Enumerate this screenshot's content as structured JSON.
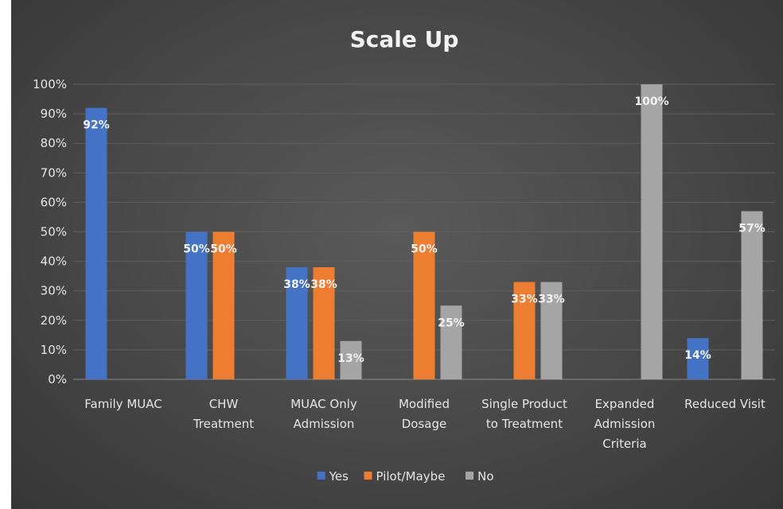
{
  "chart_data": {
    "type": "bar",
    "title": "Scale Up",
    "categories": [
      [
        "Family MUAC"
      ],
      [
        "CHW",
        "Treatment"
      ],
      [
        "MUAC Only",
        "Admission"
      ],
      [
        "Modified",
        "Dosage"
      ],
      [
        "Single Product",
        "to Treatment"
      ],
      [
        "Expanded",
        "Admission",
        "Criteria"
      ],
      [
        "Reduced Visit"
      ]
    ],
    "series": [
      {
        "name": "Yes",
        "color": "#4472c4",
        "values": [
          92,
          50,
          38,
          0,
          0,
          0,
          14
        ],
        "labels": [
          "92%",
          "50%",
          "38%",
          "",
          "",
          "",
          "14%"
        ]
      },
      {
        "name": "Pilot/Maybe",
        "color": "#ed7d31",
        "values": [
          0,
          50,
          38,
          50,
          33,
          0,
          0
        ],
        "labels": [
          "",
          "50%",
          "38%",
          "50%",
          "33%",
          "",
          ""
        ]
      },
      {
        "name": "No",
        "color": "#a5a5a5",
        "values": [
          0,
          0,
          13,
          25,
          33,
          100,
          57
        ],
        "labels": [
          "",
          "",
          "13%",
          "25%",
          "33%",
          "100%",
          "57%"
        ]
      }
    ],
    "ylim": [
      0,
      100
    ],
    "yticks": [
      "0%",
      "10%",
      "20%",
      "30%",
      "40%",
      "50%",
      "60%",
      "70%",
      "80%",
      "90%",
      "100%"
    ],
    "grid": true,
    "legend_position": "bottom",
    "xlabel": "",
    "ylabel": ""
  }
}
